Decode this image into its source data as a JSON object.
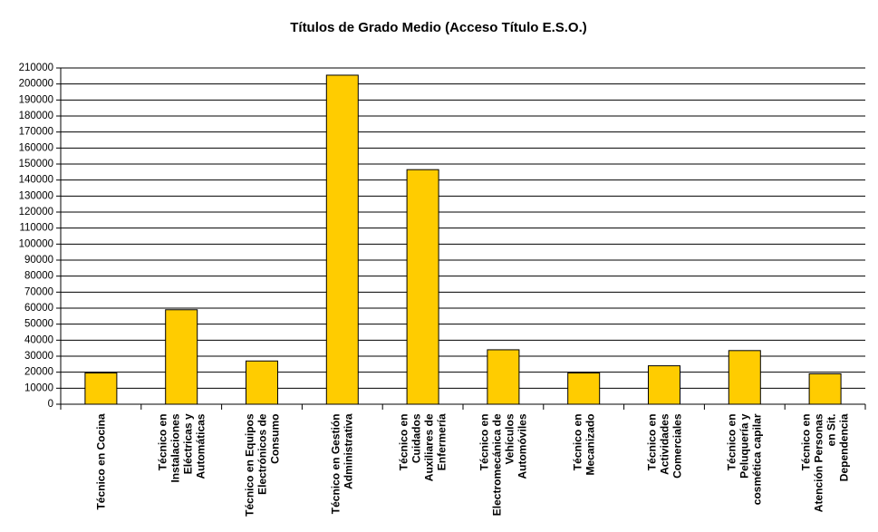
{
  "chart_data": {
    "type": "bar",
    "title": "Títulos de Grado Medio (Acceso Título E.S.O.)",
    "categories": [
      "Técnico en Cocina",
      "Técnico en\nInstalaciones\nEléctricas y\nAutomáticas",
      "Técnico en Equipos\nElectrónicos de\nConsumo",
      "Técnico en Gestión\nAdministrativa",
      "Técnico en\nCuidados\nAuxiliares de\nEnfermería",
      "Técnico en\nElectromecánica de\nVehículos\nAutomóviles",
      "Técnico en\nMecanizado",
      "Técnico en\nActividades\nComerciales",
      "Técnico en\nPeluquería y\ncosmética capilar",
      "Técnico en\nAtención Personas\nen Sit.\nDependencia"
    ],
    "values": [
      19500,
      59000,
      27000,
      205500,
      146500,
      34000,
      19500,
      24000,
      33500,
      19000
    ],
    "color": "#ffcc00",
    "ylim": [
      0,
      210000
    ],
    "yticks": [
      0,
      10000,
      20000,
      30000,
      40000,
      50000,
      60000,
      70000,
      80000,
      90000,
      100000,
      110000,
      120000,
      130000,
      140000,
      150000,
      160000,
      170000,
      180000,
      190000,
      200000,
      210000
    ],
    "grid": true
  }
}
